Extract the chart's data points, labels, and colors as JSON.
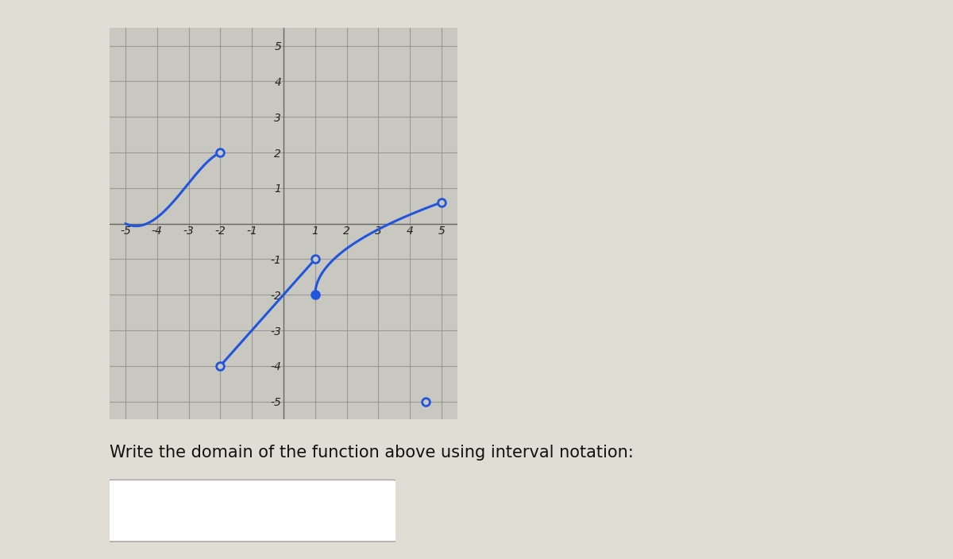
{
  "xlim": [
    -5.5,
    5.5
  ],
  "ylim": [
    -5.5,
    5.5
  ],
  "xticks": [
    -5,
    -4,
    -3,
    -2,
    -1,
    1,
    2,
    3,
    4,
    5
  ],
  "yticks": [
    -5,
    -4,
    -3,
    -2,
    -1,
    1,
    2,
    3,
    4,
    5
  ],
  "grid_color": "#999999",
  "axis_color": "#666666",
  "bg_color": "#c8c8c0",
  "curve_color": "#2255dd",
  "curve_linewidth": 2.2,
  "fig_bg_color": "#e0ddd5",
  "left_bar_color": "#1a1a1a",
  "question_text": "Write the domain of the function above using interval notation:",
  "question_fontsize": 15,
  "tick_fontsize": 10
}
